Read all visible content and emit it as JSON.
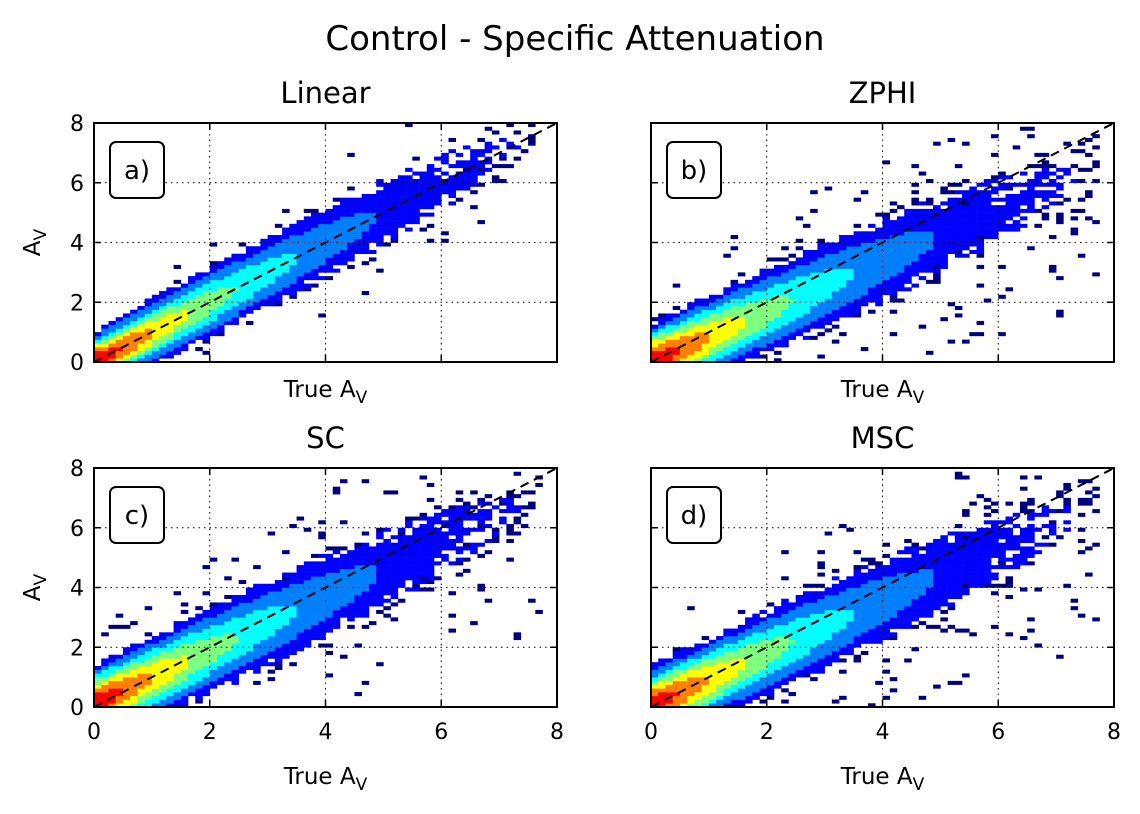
{
  "figure": {
    "title": "Control - Specific Attenuation"
  },
  "chart_data": [
    {
      "type": "heatmap",
      "panel": "a)",
      "title": "Linear",
      "xlabel": "True A",
      "xlabel_sub": "V",
      "ylabel": "A",
      "ylabel_sub": "V",
      "xlim": [
        0,
        8
      ],
      "ylim": [
        0,
        8
      ],
      "xticks": [
        0,
        2,
        4,
        6,
        8
      ],
      "yticks": [
        0,
        2,
        4,
        6,
        8
      ],
      "show_xticklabels": false,
      "show_yticklabels": true,
      "grid": true,
      "reference_line": {
        "x": [
          0,
          8
        ],
        "y": [
          0,
          8
        ],
        "style": "dashed"
      },
      "ridge": {
        "slope": 1.0,
        "intercept": 0.0,
        "spread": 0.35
      },
      "x_extent": 7.6,
      "outlier_fraction": 0.05
    },
    {
      "type": "heatmap",
      "panel": "b)",
      "title": "ZPHI",
      "xlabel": "True A",
      "xlabel_sub": "V",
      "ylabel": "",
      "ylabel_sub": "",
      "xlim": [
        0,
        8
      ],
      "ylim": [
        0,
        8
      ],
      "xticks": [
        0,
        2,
        4,
        6,
        8
      ],
      "yticks": [
        0,
        2,
        4,
        6,
        8
      ],
      "show_xticklabels": false,
      "show_yticklabels": false,
      "grid": true,
      "reference_line": {
        "x": [
          0,
          8
        ],
        "y": [
          0,
          8
        ],
        "style": "dashed"
      },
      "ridge": {
        "slope": 0.85,
        "intercept": 0.0,
        "spread": 0.45
      },
      "x_extent": 7.8,
      "outlier_fraction": 0.18
    },
    {
      "type": "heatmap",
      "panel": "c)",
      "title": "SC",
      "xlabel": "True A",
      "xlabel_sub": "V",
      "ylabel": "A",
      "ylabel_sub": "V",
      "xlim": [
        0,
        8
      ],
      "ylim": [
        0,
        8
      ],
      "xticks": [
        0,
        2,
        4,
        6,
        8
      ],
      "yticks": [
        0,
        2,
        4,
        6,
        8
      ],
      "show_xticklabels": true,
      "show_yticklabels": true,
      "grid": true,
      "reference_line": {
        "x": [
          0,
          8
        ],
        "y": [
          0,
          8
        ],
        "style": "dashed"
      },
      "ridge": {
        "slope": 0.9,
        "intercept": 0.1,
        "spread": 0.45
      },
      "x_extent": 7.8,
      "outlier_fraction": 0.16
    },
    {
      "type": "heatmap",
      "panel": "d)",
      "title": "MSC",
      "xlabel": "True A",
      "xlabel_sub": "V",
      "ylabel": "",
      "ylabel_sub": "",
      "xlim": [
        0,
        8
      ],
      "ylim": [
        0,
        8
      ],
      "xticks": [
        0,
        2,
        4,
        6,
        8
      ],
      "yticks": [
        0,
        2,
        4,
        6,
        8
      ],
      "show_xticklabels": true,
      "show_yticklabels": false,
      "grid": true,
      "reference_line": {
        "x": [
          0,
          8
        ],
        "y": [
          0,
          8
        ],
        "style": "dashed"
      },
      "ridge": {
        "slope": 0.88,
        "intercept": 0.05,
        "spread": 0.45
      },
      "x_extent": 7.8,
      "outlier_fraction": 0.17
    }
  ],
  "colors": {
    "colormap": [
      "#00007f",
      "#0000ff",
      "#007fff",
      "#00ffff",
      "#7fff7f",
      "#ffff00",
      "#ff7f00",
      "#ff0000"
    ],
    "reference_line": "#000000",
    "grid": "#000000",
    "axes": "#000000"
  }
}
